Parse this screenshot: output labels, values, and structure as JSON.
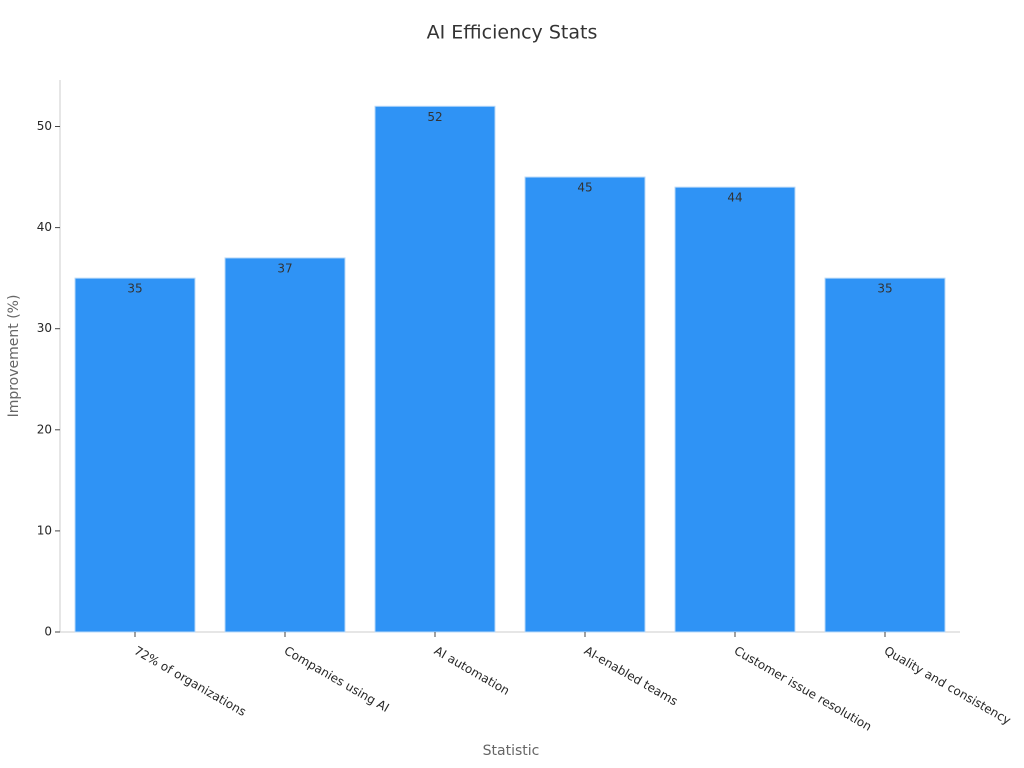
{
  "chart_data": {
    "type": "bar",
    "title": "AI Efficiency Stats",
    "x_label": "Statistic",
    "y_label": "Improvement (%)",
    "categories": [
      "72% of organizations",
      "Companies using AI",
      "AI automation",
      "AI-enabled teams",
      "Customer issue resolution",
      "Quality and consistency"
    ],
    "values": [
      35,
      37,
      52,
      45,
      44,
      35
    ],
    "color": "#2f93f5",
    "ylim": [
      0,
      54.6
    ],
    "yticks": [
      0,
      10,
      20,
      30,
      40,
      50
    ],
    "grid": false
  }
}
